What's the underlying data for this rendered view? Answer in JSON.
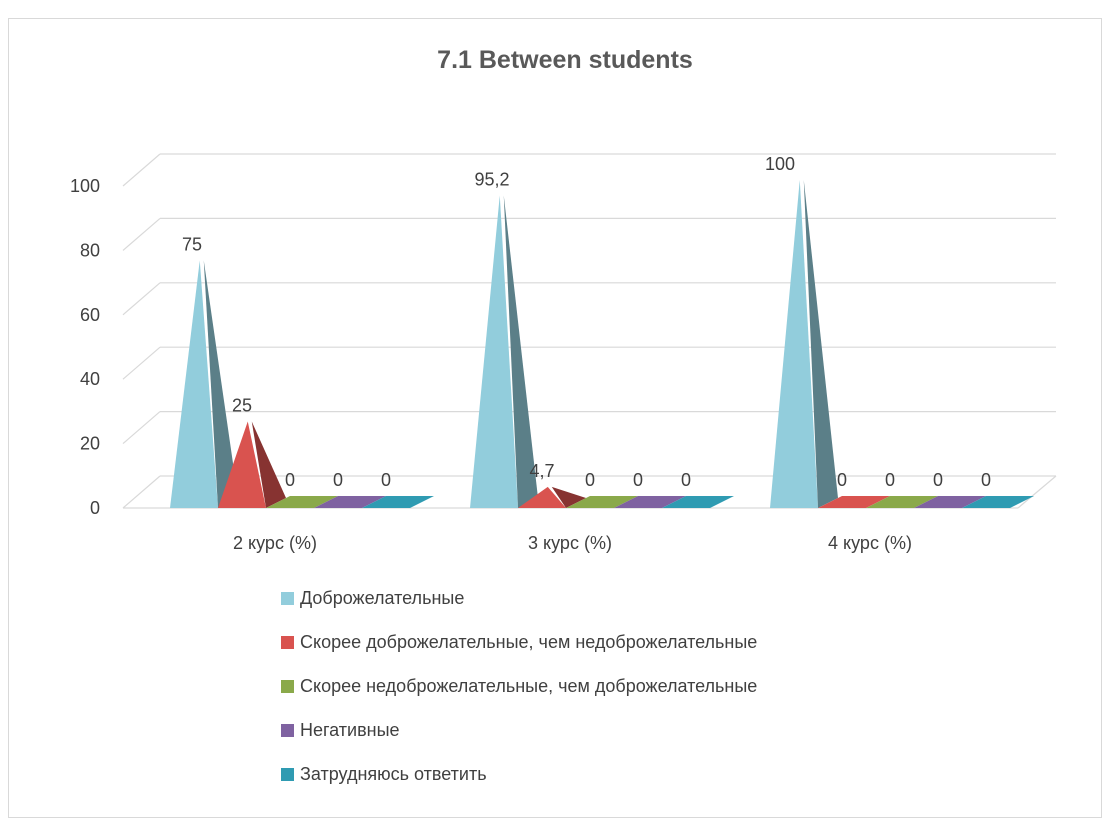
{
  "chart_data": {
    "type": "bar",
    "title": "7.1 Between students",
    "categories": [
      "2 курс (%)",
      "3 курс (%)",
      "4 курс (%)"
    ],
    "ylim": [
      0,
      100
    ],
    "yticks": [
      "0",
      "20",
      "40",
      "60",
      "80",
      "100"
    ],
    "grid": true,
    "legend_position": "bottom",
    "series": [
      {
        "name": "Доброжелательные",
        "color": "#92cddc",
        "values": [
          75,
          95.2,
          100
        ],
        "labels": [
          "75",
          "95,2",
          "100"
        ]
      },
      {
        "name": "Скорее доброжелательные, чем недоброжелательные",
        "color": "#d9534f",
        "values": [
          25,
          4.7,
          0
        ],
        "labels": [
          "25",
          "4,7",
          "0"
        ]
      },
      {
        "name": "Скорее недоброжелательные, чем доброжелательные",
        "color": "#8aa94a",
        "values": [
          0,
          0,
          0
        ],
        "labels": [
          "0",
          "0",
          "0"
        ]
      },
      {
        "name": "Негативные",
        "color": "#7f62a1",
        "values": [
          0,
          0,
          0
        ],
        "labels": [
          "0",
          "0",
          "0"
        ]
      },
      {
        "name": "Затрудняюсь ответить",
        "color": "#2f9bb2",
        "values": [
          0,
          0,
          0
        ],
        "labels": [
          "0",
          "0",
          "0"
        ]
      }
    ]
  }
}
